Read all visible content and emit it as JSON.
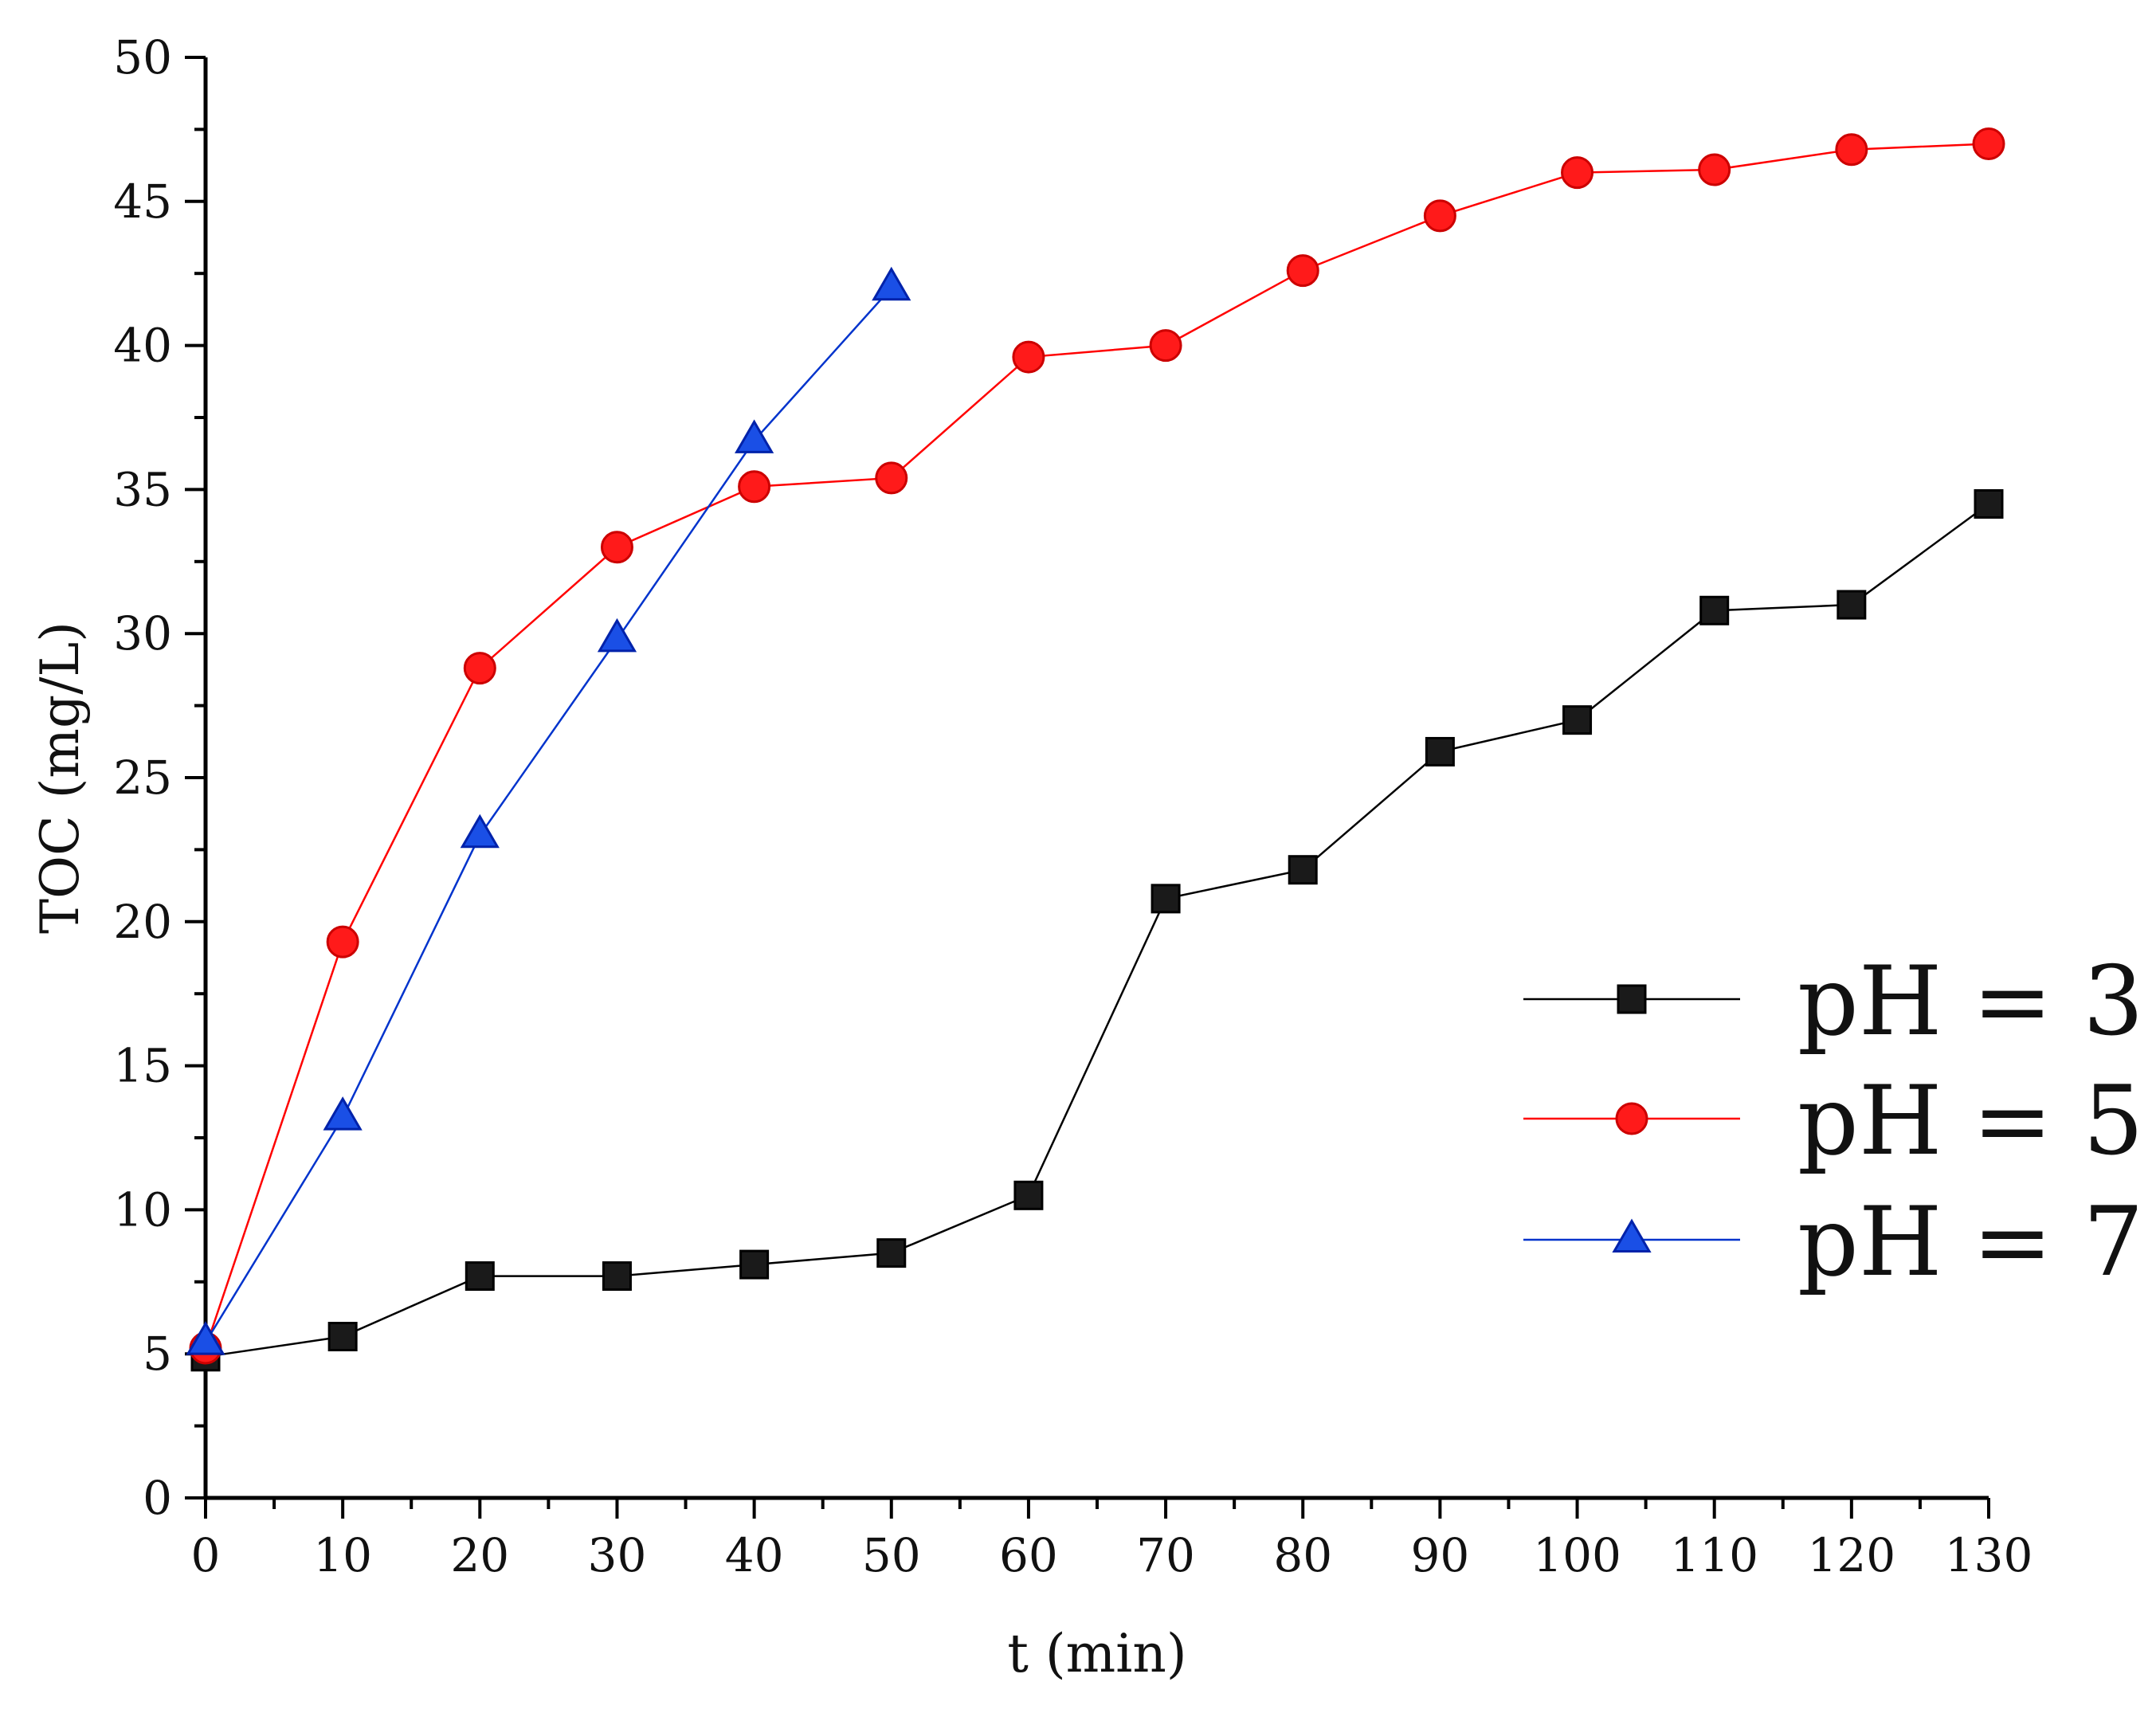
{
  "chart_data": {
    "type": "line",
    "title": "",
    "xlabel": "t (min)",
    "ylabel": "TOC (mg/L)",
    "xlim": [
      0,
      130
    ],
    "ylim": [
      0,
      50
    ],
    "x_ticks": [
      0,
      10,
      20,
      30,
      40,
      50,
      60,
      70,
      80,
      90,
      100,
      110,
      120,
      130
    ],
    "y_ticks": [
      0,
      5,
      10,
      15,
      20,
      25,
      30,
      35,
      40,
      45,
      50
    ],
    "grid": false,
    "legend_position": "right",
    "series": [
      {
        "name": "pH = 3",
        "color": "#000000",
        "marker": "square",
        "x": [
          0,
          10,
          20,
          30,
          40,
          50,
          60,
          70,
          80,
          90,
          100,
          110,
          120,
          130
        ],
        "y": [
          4.9,
          5.6,
          7.7,
          7.7,
          8.1,
          8.5,
          10.5,
          20.8,
          21.8,
          25.9,
          27.0,
          30.8,
          31.0,
          34.5
        ]
      },
      {
        "name": "pH = 5",
        "color": "#ff0000",
        "marker": "circle",
        "x": [
          0,
          10,
          20,
          30,
          40,
          50,
          60,
          70,
          80,
          90,
          100,
          110,
          120,
          130
        ],
        "y": [
          5.2,
          19.3,
          28.8,
          33.0,
          35.1,
          35.4,
          39.6,
          40.0,
          42.6,
          44.5,
          46.0,
          46.1,
          46.8,
          47.0
        ]
      },
      {
        "name": "pH = 7",
        "color": "#0033cc",
        "marker": "triangle",
        "x": [
          0,
          10,
          20,
          30,
          40,
          50
        ],
        "y": [
          5.4,
          13.2,
          23.0,
          29.8,
          36.7,
          42.0
        ]
      }
    ]
  }
}
